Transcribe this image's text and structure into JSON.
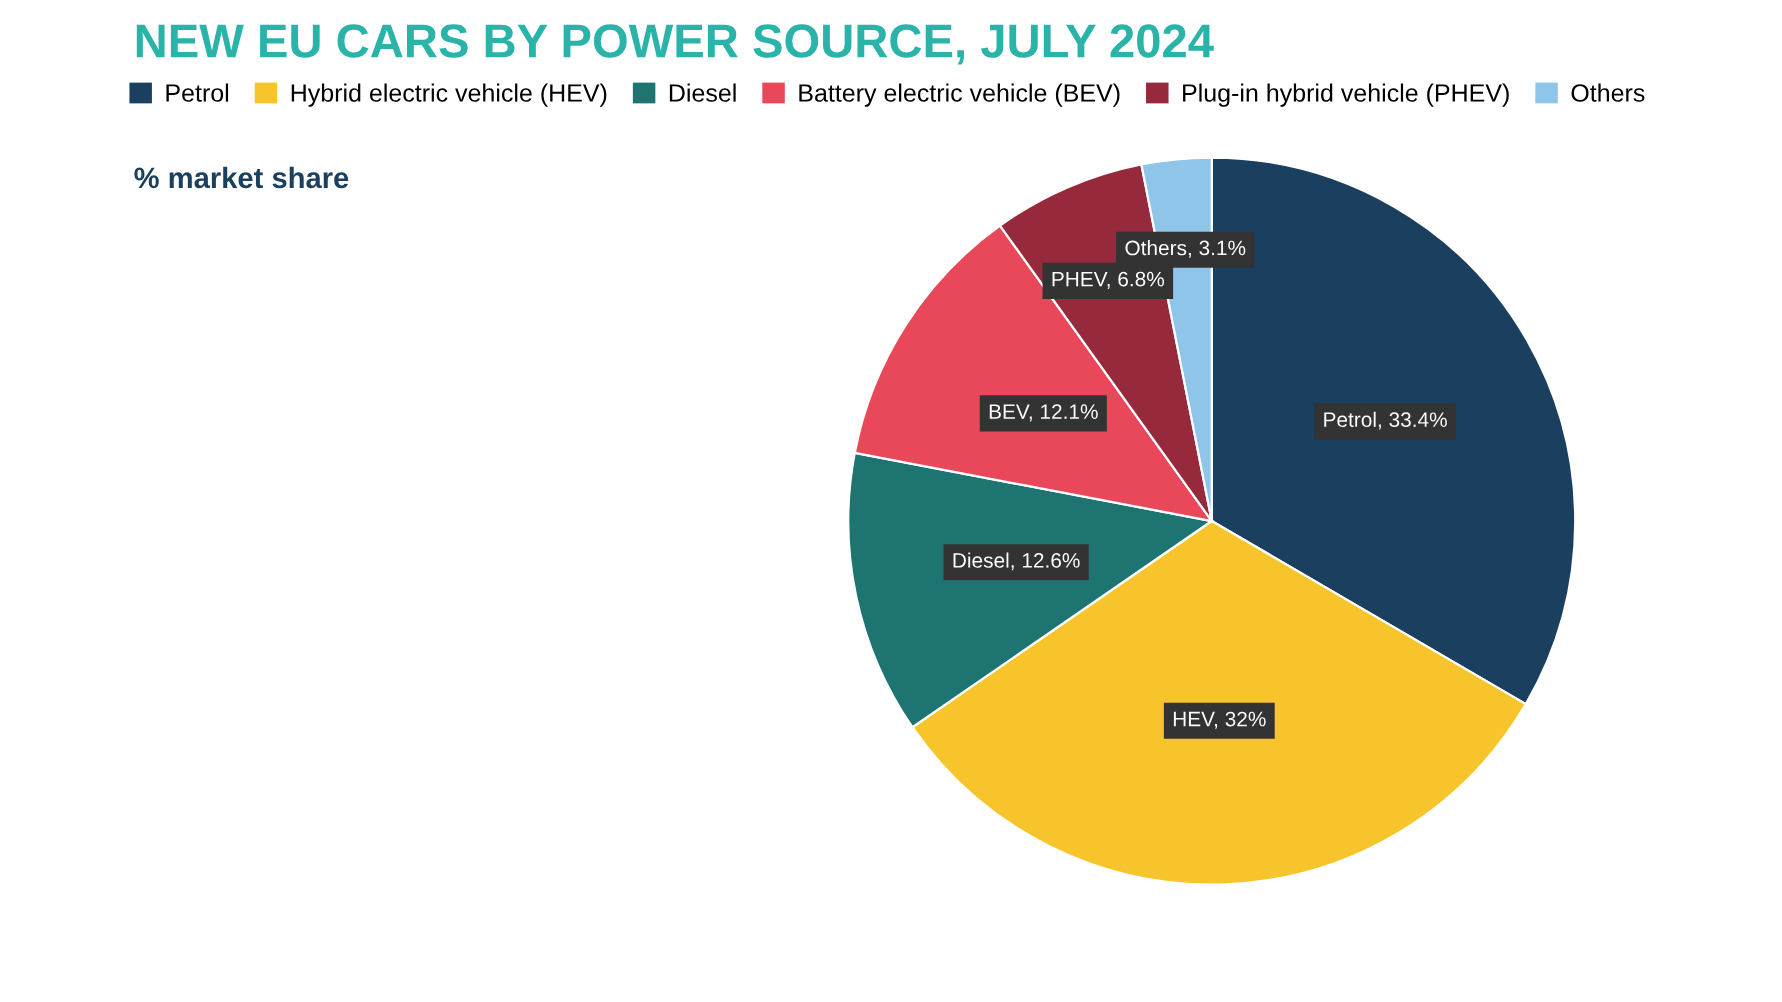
{
  "chart_data": {
    "type": "pie",
    "title": "NEW EU CARS BY POWER SOURCE, JULY 2024",
    "subtitle": "% market share",
    "categories": [
      "Petrol",
      "Hybrid electric vehicle (HEV)",
      "Diesel",
      "Battery electric vehicle (BEV)",
      "Plug-in hybrid vehicle (PHEV)",
      "Others"
    ],
    "values": [
      33.4,
      32,
      12.6,
      12.1,
      6.8,
      3.1
    ],
    "colors": [
      "#1b3f5e",
      "#f7c52b",
      "#1d7470",
      "#e9485a",
      "#962a3c",
      "#8ec5e8"
    ],
    "value_labels": [
      "Petrol, 33.4%",
      "HEV, 32%",
      "Diesel, 12.6%",
      "BEV, 12.1%",
      "PHEV, 6.8%",
      "Others, 3.1%"
    ],
    "legend": "top"
  }
}
